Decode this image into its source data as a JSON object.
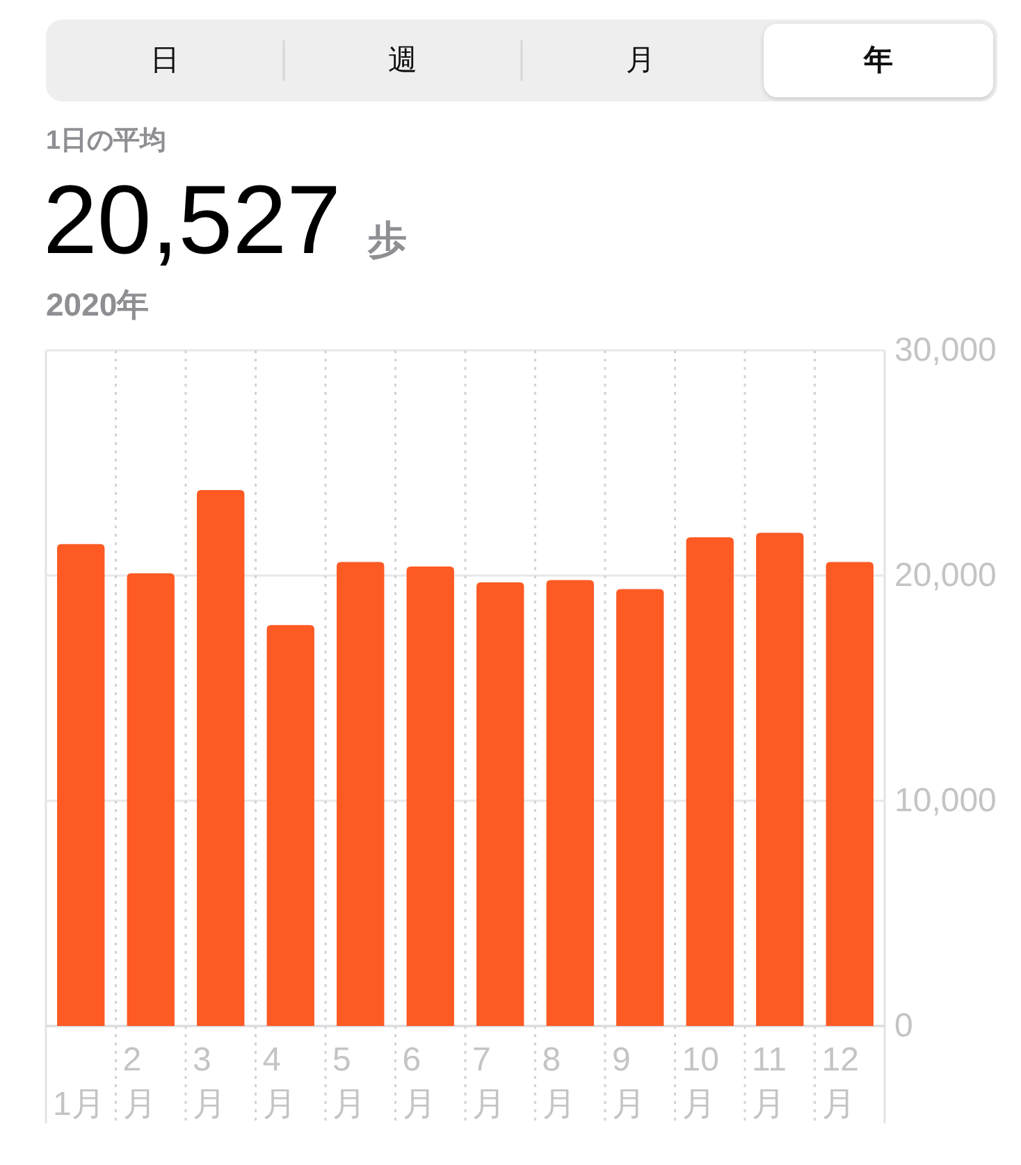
{
  "chart_data": [
    {
      "type": "other",
      "categories": [
        "日",
        "週",
        "月",
        "年"
      ]
    },
    {
      "type": "bar",
      "title": "1日の平均",
      "subtitle": "20,527 歩",
      "annotations": [
        "2020年"
      ],
      "categories": [
        "1月",
        "2\n月",
        "3\n月",
        "4\n月",
        "5\n月",
        "6\n月",
        "7\n月",
        "8\n月",
        "9\n月",
        "10\n月",
        "11\n月",
        "12\n月"
      ],
      "values": [
        21400,
        20100,
        23800,
        17800,
        20600,
        20400,
        19700,
        19800,
        19400,
        21700,
        21900,
        20600
      ],
      "color": "#fd5a24",
      "ylim": [
        0,
        30000
      ],
      "yticks": [
        0,
        {
          "value": 10000,
          "label": "10,000"
        },
        {
          "value": 20000,
          "label": "20,000"
        },
        {
          "value": 30000,
          "label": "30,000"
        }
      ],
      "grid": true
    }
  ]
}
